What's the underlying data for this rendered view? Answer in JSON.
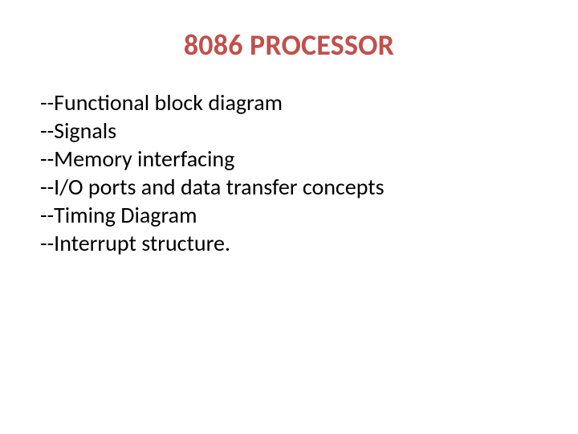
{
  "slide": {
    "title": "8086 PROCESSOR",
    "title_color": "#c0504d",
    "title_fontsize": 36,
    "title_fontweight": 700,
    "body_color": "#000000",
    "body_fontsize": 28,
    "body_fontweight": 400,
    "body_lineheight": 1.25,
    "lines": [
      "--Functional block diagram",
      "--Signals",
      "--Memory interfacing",
      "--I/O ports and data transfer concepts",
      "--Timing Diagram",
      "--Interrupt structure."
    ],
    "background_color": "#ffffff"
  }
}
